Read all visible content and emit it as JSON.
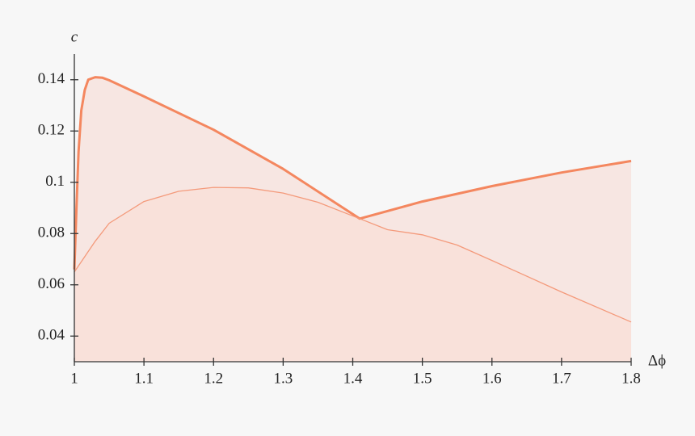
{
  "chart_data": {
    "type": "area",
    "x_label": "Δϕ",
    "y_label": "c",
    "xlim": [
      1,
      1.8
    ],
    "xticks": [
      1,
      1.1,
      1.2,
      1.3,
      1.4,
      1.5,
      1.6,
      1.7,
      1.8
    ],
    "ylim": [
      0.03,
      0.15
    ],
    "yticks": [
      0.04,
      0.06,
      0.08,
      0.1,
      0.12,
      0.14
    ],
    "series": [
      {
        "color": "#f4875f",
        "fill": "#f7e6e2",
        "width": 3,
        "x": [
          1,
          1.003,
          1.006,
          1.01,
          1.015,
          1.02,
          1.03,
          1.04,
          1.05,
          1.1,
          1.2,
          1.3,
          1.41,
          1.5,
          1.6,
          1.7,
          1.8
        ],
        "values": [
          0.066,
          0.09,
          0.112,
          0.128,
          0.136,
          0.14,
          0.141,
          0.1408,
          0.1398,
          0.1335,
          0.1205,
          0.1052,
          0.0858,
          0.0925,
          0.0985,
          0.1038,
          0.1083
        ]
      },
      {
        "color": "#f49a7b",
        "fill": "#f9e1da",
        "width": 1.3,
        "x": [
          1,
          1.03,
          1.05,
          1.1,
          1.15,
          1.2,
          1.25,
          1.3,
          1.35,
          1.41,
          1.45,
          1.5,
          1.55,
          1.6,
          1.7,
          1.8
        ],
        "values": [
          0.065,
          0.077,
          0.084,
          0.0925,
          0.0965,
          0.098,
          0.0978,
          0.0958,
          0.0922,
          0.0858,
          0.0815,
          0.0795,
          0.0755,
          0.0695,
          0.0572,
          0.0455
        ]
      }
    ]
  }
}
